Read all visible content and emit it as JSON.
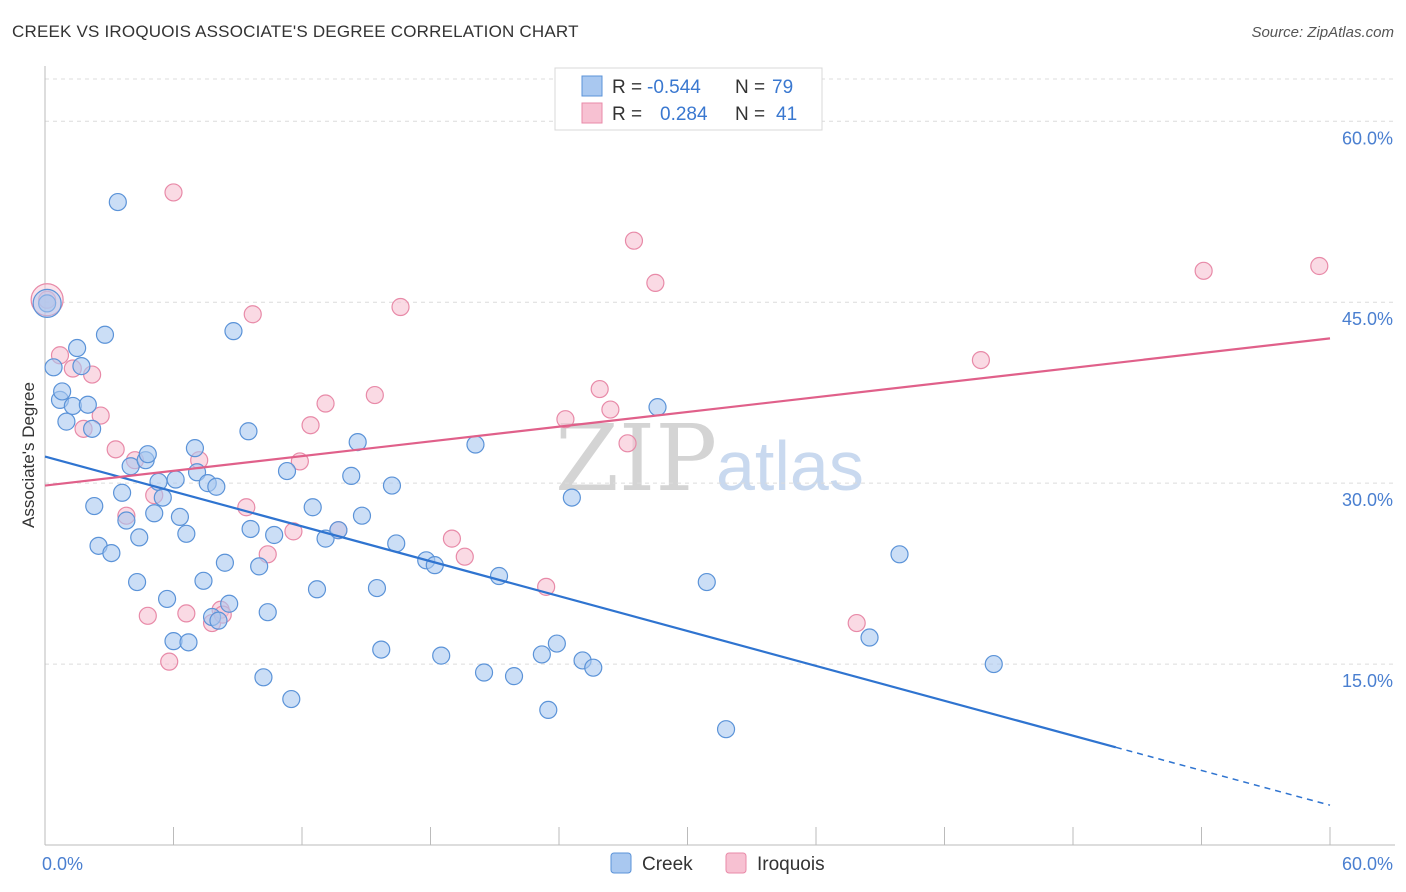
{
  "title": "CREEK VS IROQUOIS ASSOCIATE'S DEGREE CORRELATION CHART",
  "source": "Source: ZipAtlas.com",
  "watermark": {
    "zip": "ZIP",
    "atlas": "atlas"
  },
  "colors": {
    "creek_fill": "#a9c8f0",
    "creek_stroke": "#5b93d8",
    "creek_line": "#2f74d0",
    "iroquois_fill": "#f7c1d2",
    "iroquois_stroke": "#e88aa8",
    "iroquois_line": "#e0608a",
    "grid": "#dcdcdc",
    "tick_text": "#4a7fd0"
  },
  "legend": {
    "rows": [
      {
        "r_label": "R =",
        "r_value": "-0.544",
        "n_label": "N =",
        "n_value": "79"
      },
      {
        "r_label": "R =",
        "r_value": "0.284",
        "n_label": "N =",
        "n_value": "41"
      }
    ]
  },
  "chart_data": {
    "type": "scatter",
    "title": "CREEK VS IROQUOIS ASSOCIATE'S DEGREE CORRELATION CHART",
    "xlabel": "",
    "ylabel": "Associate's Degree",
    "xlim": [
      0,
      60
    ],
    "ylim": [
      0,
      64
    ],
    "x_tick_labels": [
      {
        "value": 0,
        "label": "0.0%"
      },
      {
        "value": 60,
        "label": "60.0%"
      }
    ],
    "y_tick_labels": [
      {
        "value": 15,
        "label": "15.0%"
      },
      {
        "value": 30,
        "label": "30.0%"
      },
      {
        "value": 45,
        "label": "45.0%"
      },
      {
        "value": 60,
        "label": "60.0%"
      }
    ],
    "y_gridlines": [
      15,
      30,
      45,
      60
    ],
    "grid": true,
    "legend_position": "top-center",
    "series": [
      {
        "name": "Creek",
        "stats": {
          "R": -0.544,
          "N": 79
        },
        "trend": {
          "x0": 0,
          "y0": 32.2,
          "x1": 50,
          "y1": 8.1,
          "dashed_to_x": 60,
          "dashed_to_y": 3.3
        },
        "points": [
          [
            0.1,
            44.9
          ],
          [
            0.4,
            39.6
          ],
          [
            0.7,
            36.9
          ],
          [
            0.8,
            37.6
          ],
          [
            1.0,
            35.1
          ],
          [
            1.3,
            36.4
          ],
          [
            1.5,
            41.2
          ],
          [
            1.7,
            39.7
          ],
          [
            2.0,
            36.5
          ],
          [
            2.2,
            34.5
          ],
          [
            2.3,
            28.1
          ],
          [
            2.5,
            24.8
          ],
          [
            2.8,
            42.3
          ],
          [
            3.1,
            24.2
          ],
          [
            3.4,
            53.3
          ],
          [
            3.6,
            29.2
          ],
          [
            3.8,
            26.9
          ],
          [
            4.0,
            31.4
          ],
          [
            4.3,
            21.8
          ],
          [
            4.4,
            25.5
          ],
          [
            4.7,
            31.9
          ],
          [
            4.8,
            32.4
          ],
          [
            5.1,
            27.5
          ],
          [
            5.3,
            30.1
          ],
          [
            5.5,
            28.8
          ],
          [
            5.7,
            20.4
          ],
          [
            6.0,
            16.9
          ],
          [
            6.1,
            30.3
          ],
          [
            6.3,
            27.2
          ],
          [
            6.6,
            25.8
          ],
          [
            6.7,
            16.8
          ],
          [
            7.0,
            32.9
          ],
          [
            7.1,
            30.9
          ],
          [
            7.4,
            21.9
          ],
          [
            7.6,
            30.0
          ],
          [
            7.8,
            18.9
          ],
          [
            8.0,
            29.7
          ],
          [
            8.1,
            18.6
          ],
          [
            8.4,
            23.4
          ],
          [
            8.6,
            20.0
          ],
          [
            8.8,
            42.6
          ],
          [
            9.5,
            34.3
          ],
          [
            9.6,
            26.2
          ],
          [
            10.0,
            23.1
          ],
          [
            10.2,
            13.9
          ],
          [
            10.4,
            19.3
          ],
          [
            10.7,
            25.7
          ],
          [
            11.3,
            31.0
          ],
          [
            11.5,
            12.1
          ],
          [
            12.5,
            28.0
          ],
          [
            12.7,
            21.2
          ],
          [
            13.1,
            25.4
          ],
          [
            13.7,
            26.1
          ],
          [
            14.3,
            30.6
          ],
          [
            14.6,
            33.4
          ],
          [
            14.8,
            27.3
          ],
          [
            15.5,
            21.3
          ],
          [
            15.7,
            16.2
          ],
          [
            16.2,
            29.8
          ],
          [
            16.4,
            25.0
          ],
          [
            17.8,
            23.6
          ],
          [
            18.2,
            23.2
          ],
          [
            18.5,
            15.7
          ],
          [
            20.1,
            33.2
          ],
          [
            20.5,
            14.3
          ],
          [
            21.2,
            22.3
          ],
          [
            21.9,
            14.0
          ],
          [
            23.2,
            15.8
          ],
          [
            23.5,
            11.2
          ],
          [
            23.9,
            16.7
          ],
          [
            24.6,
            28.8
          ],
          [
            25.1,
            15.3
          ],
          [
            25.6,
            14.7
          ],
          [
            28.6,
            36.3
          ],
          [
            30.9,
            21.8
          ],
          [
            31.8,
            9.6
          ],
          [
            38.5,
            17.2
          ],
          [
            39.9,
            24.1
          ],
          [
            44.3,
            15.0
          ]
        ]
      },
      {
        "name": "Iroquois",
        "stats": {
          "R": 0.284,
          "N": 41
        },
        "trend": {
          "x0": 0,
          "y0": 29.8,
          "x1": 60,
          "y1": 42.0
        },
        "points": [
          [
            0.1,
            45.2
          ],
          [
            0.7,
            40.6
          ],
          [
            1.3,
            39.5
          ],
          [
            1.8,
            34.5
          ],
          [
            2.2,
            39.0
          ],
          [
            2.6,
            35.6
          ],
          [
            3.3,
            32.8
          ],
          [
            3.8,
            27.3
          ],
          [
            4.2,
            31.9
          ],
          [
            4.8,
            19.0
          ],
          [
            5.1,
            29.0
          ],
          [
            5.8,
            15.2
          ],
          [
            6.0,
            54.1
          ],
          [
            6.6,
            19.2
          ],
          [
            7.2,
            31.9
          ],
          [
            7.8,
            18.4
          ],
          [
            8.2,
            19.5
          ],
          [
            8.3,
            19.1
          ],
          [
            9.4,
            28.0
          ],
          [
            9.7,
            44.0
          ],
          [
            10.4,
            24.1
          ],
          [
            11.6,
            26.0
          ],
          [
            11.9,
            31.8
          ],
          [
            12.4,
            34.8
          ],
          [
            13.1,
            36.6
          ],
          [
            13.7,
            26.1
          ],
          [
            15.4,
            37.3
          ],
          [
            16.6,
            44.6
          ],
          [
            19.0,
            25.4
          ],
          [
            19.6,
            23.9
          ],
          [
            23.4,
            21.4
          ],
          [
            24.3,
            35.3
          ],
          [
            25.9,
            37.8
          ],
          [
            26.4,
            36.1
          ],
          [
            27.2,
            33.3
          ],
          [
            27.5,
            50.1
          ],
          [
            28.5,
            46.6
          ],
          [
            37.9,
            18.4
          ],
          [
            43.7,
            40.2
          ],
          [
            54.1,
            47.6
          ],
          [
            59.5,
            48.0
          ]
        ]
      }
    ]
  }
}
